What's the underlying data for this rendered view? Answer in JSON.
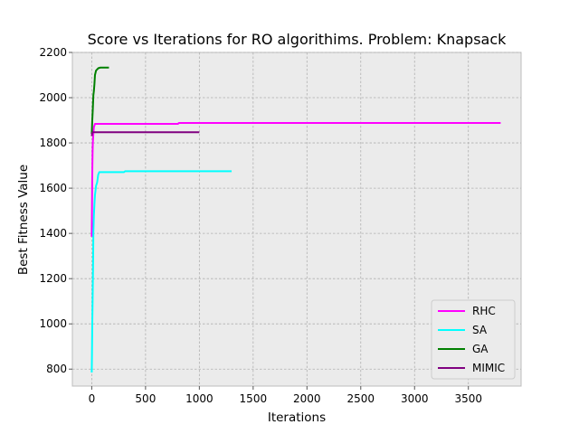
{
  "chart_data": {
    "type": "line",
    "title": "Score vs Iterations for RO algorithims.  Problem: Knapsack",
    "xlabel": "Iterations",
    "ylabel": "Best Fitness Value",
    "xlim": [
      -180,
      3990
    ],
    "ylim": [
      725,
      2200
    ],
    "xticks": [
      0,
      500,
      1000,
      1500,
      2000,
      2500,
      3000,
      3500
    ],
    "yticks": [
      800,
      1000,
      1200,
      1400,
      1600,
      1800,
      2000,
      2200
    ],
    "grid": true,
    "background": "#ebebeb",
    "legend_position": "lower right",
    "series": [
      {
        "name": "RHC",
        "color": "#ff00ff",
        "x": [
          0,
          2,
          4,
          6,
          8,
          10,
          15,
          20,
          30,
          800,
          810,
          3800
        ],
        "y": [
          1385,
          1500,
          1620,
          1700,
          1760,
          1800,
          1840,
          1870,
          1884,
          1884,
          1888,
          1888
        ]
      },
      {
        "name": "SA",
        "color": "#00ffff",
        "x": [
          0,
          2,
          5,
          8,
          12,
          15,
          20,
          25,
          30,
          40,
          50,
          60,
          70,
          300,
          310,
          1300
        ],
        "y": [
          785,
          860,
          1000,
          1100,
          1250,
          1400,
          1480,
          1530,
          1570,
          1610,
          1625,
          1660,
          1671,
          1671,
          1675,
          1675
        ]
      },
      {
        "name": "GA",
        "color": "#008000",
        "x": [
          0,
          5,
          10,
          15,
          20,
          25,
          30,
          40,
          50,
          60,
          80,
          100,
          160
        ],
        "y": [
          1840,
          1900,
          1950,
          2010,
          2030,
          2060,
          2100,
          2120,
          2125,
          2130,
          2133,
          2133,
          2133
        ]
      },
      {
        "name": "MIMIC",
        "color": "#800080",
        "x": [
          0,
          5,
          10,
          1000
        ],
        "y": [
          1830,
          1845,
          1847,
          1847
        ]
      }
    ]
  }
}
